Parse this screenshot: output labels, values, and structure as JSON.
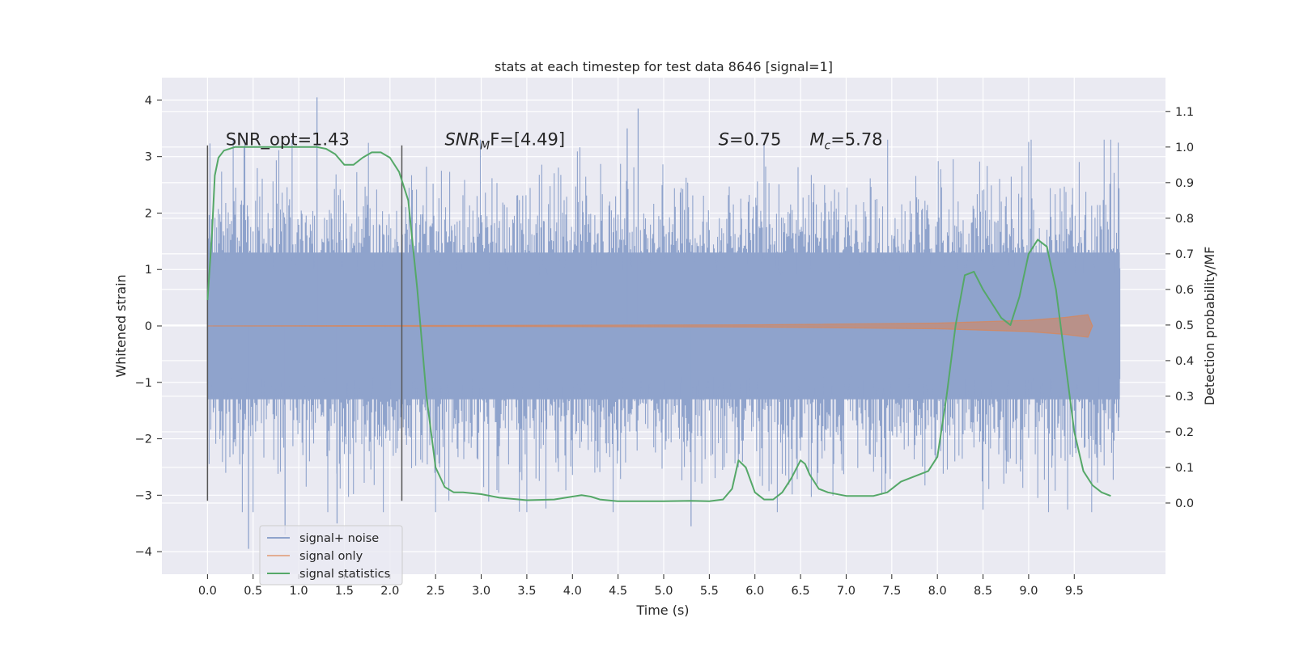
{
  "chart_data": {
    "type": "line",
    "title": "stats at each timestep for test data 8646 [signal=1]",
    "xlabel": "Time (s)",
    "ylabel": "Whitened strain",
    "y2label": "Detection probability/MF",
    "xlim": [
      -0.5,
      10.5
    ],
    "ylim": [
      -4.4,
      4.4
    ],
    "y2lim": [
      -0.2,
      1.195
    ],
    "xticks": [
      "0.0",
      "0.5",
      "1.0",
      "1.5",
      "2.0",
      "2.5",
      "3.0",
      "3.5",
      "4.0",
      "4.5",
      "5.0",
      "5.5",
      "6.0",
      "6.5",
      "7.0",
      "7.5",
      "8.0",
      "8.5",
      "9.0",
      "9.5"
    ],
    "yticks": [
      "4",
      "3",
      "2",
      "1",
      "0",
      "−1",
      "−2",
      "−3",
      "−4"
    ],
    "y2ticks": [
      "1.1",
      "1.0",
      "0.9",
      "0.8",
      "0.7",
      "0.6",
      "0.5",
      "0.4",
      "0.3",
      "0.2",
      "0.1",
      "0.0"
    ],
    "grid": true,
    "legend_position": "lower-left",
    "colors": {
      "signal_noise": "#8fa3cc",
      "signal_only": "#dd8452",
      "statistics": "#55a868",
      "axes_bg": "#eaeaf2",
      "vline": "#555555"
    },
    "annotations": [
      {
        "text": "SNR_opt=1.43",
        "x": 0.2,
        "y": 3.2
      },
      {
        "main": "SNR",
        "sub": "M",
        "rest": "F=[4.49]",
        "x": 2.6,
        "y": 3.2
      },
      {
        "main": "S",
        "rest": "=0.75",
        "x": 5.6,
        "y": 3.2
      },
      {
        "main": "M",
        "sub": "c",
        "rest": "=5.78",
        "x": 6.6,
        "y": 3.2
      }
    ],
    "vertical_lines": [
      {
        "x": 0.0,
        "ymin": -3.1,
        "ymax": 3.2
      },
      {
        "x": 2.13,
        "ymin": -3.1,
        "ymax": 3.2
      }
    ],
    "series": [
      {
        "name": "signal+ noise",
        "t_range": [
          0.0,
          10.0
        ],
        "approx_band": [
          -1.3,
          1.3
        ],
        "notable_peaks": [
          {
            "x": 0.45,
            "y": -3.95
          },
          {
            "x": 1.2,
            "y": 4.05
          },
          {
            "x": 4.72,
            "y": 3.85
          },
          {
            "x": 4.6,
            "y": 3.5
          },
          {
            "x": 5.3,
            "y": -3.55
          },
          {
            "x": 0.85,
            "y": -3.7
          },
          {
            "x": 1.42,
            "y": -3.5
          }
        ]
      },
      {
        "name": "signal only",
        "x": [
          0.0,
          6.0,
          8.0,
          9.0,
          9.4,
          9.65,
          9.7
        ],
        "y": [
          0.0,
          0.02,
          0.05,
          0.1,
          0.15,
          0.2,
          0.0
        ]
      },
      {
        "name": "signal statistics",
        "axis": "right",
        "x": [
          0.0,
          0.05,
          0.08,
          0.12,
          0.18,
          0.3,
          0.5,
          1.0,
          1.2,
          1.3,
          1.4,
          1.5,
          1.6,
          1.7,
          1.8,
          1.9,
          2.0,
          2.1,
          2.2,
          2.3,
          2.35,
          2.4,
          2.5,
          2.6,
          2.7,
          2.8,
          3.0,
          3.2,
          3.5,
          3.8,
          4.0,
          4.1,
          4.2,
          4.3,
          4.5,
          4.8,
          5.0,
          5.3,
          5.5,
          5.65,
          5.75,
          5.82,
          5.9,
          6.0,
          6.1,
          6.2,
          6.3,
          6.4,
          6.5,
          6.55,
          6.6,
          6.7,
          6.8,
          7.0,
          7.3,
          7.45,
          7.6,
          7.8,
          7.9,
          8.0,
          8.1,
          8.2,
          8.3,
          8.4,
          8.5,
          8.6,
          8.7,
          8.8,
          8.9,
          9.0,
          9.1,
          9.2,
          9.3,
          9.4,
          9.5,
          9.6,
          9.7,
          9.8,
          9.9
        ],
        "y": [
          0.57,
          0.76,
          0.92,
          0.97,
          0.99,
          1.0,
          1.0,
          1.0,
          1.0,
          0.995,
          0.98,
          0.95,
          0.95,
          0.97,
          0.985,
          0.985,
          0.97,
          0.93,
          0.85,
          0.6,
          0.45,
          0.3,
          0.1,
          0.045,
          0.03,
          0.03,
          0.025,
          0.015,
          0.008,
          0.01,
          0.018,
          0.022,
          0.018,
          0.01,
          0.005,
          0.005,
          0.005,
          0.006,
          0.005,
          0.01,
          0.04,
          0.12,
          0.1,
          0.03,
          0.01,
          0.01,
          0.03,
          0.07,
          0.12,
          0.11,
          0.08,
          0.04,
          0.03,
          0.02,
          0.02,
          0.03,
          0.06,
          0.08,
          0.09,
          0.13,
          0.3,
          0.5,
          0.64,
          0.65,
          0.6,
          0.56,
          0.52,
          0.5,
          0.58,
          0.7,
          0.74,
          0.72,
          0.6,
          0.4,
          0.2,
          0.09,
          0.05,
          0.03,
          0.02
        ]
      }
    ]
  }
}
